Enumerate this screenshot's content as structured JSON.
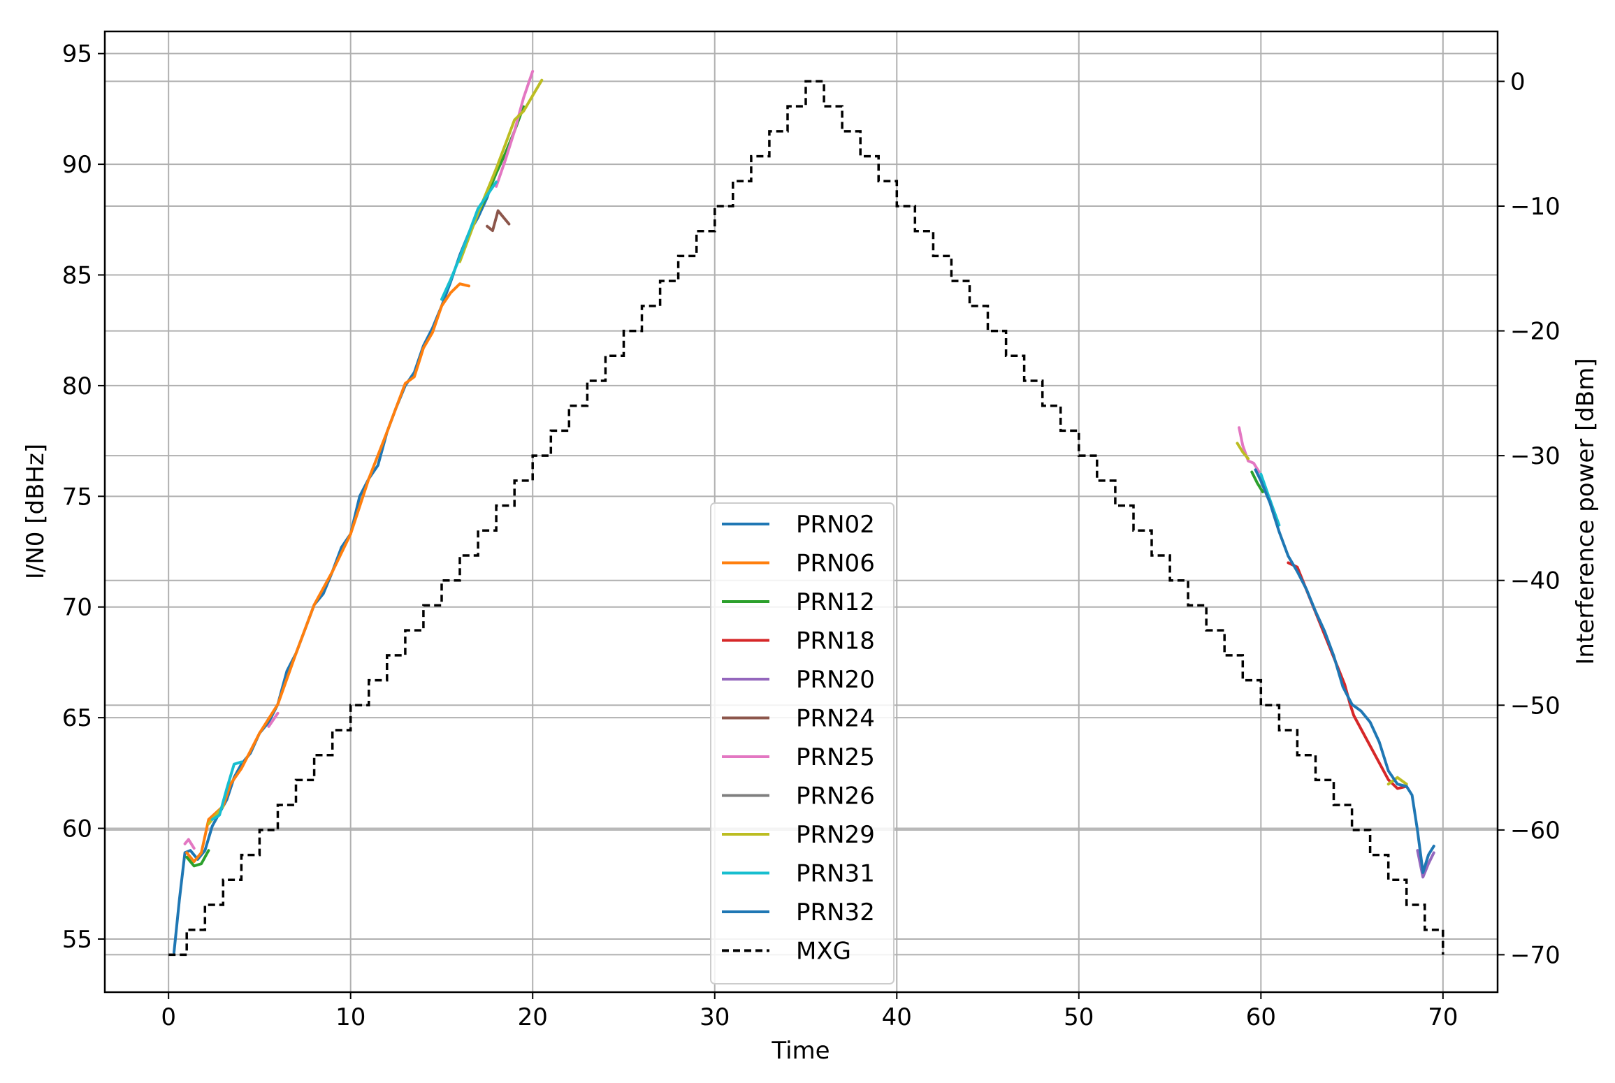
{
  "chart_data": {
    "type": "line",
    "title": "",
    "xlabel": "Time",
    "ylabel": "I/N0 [dBHz]",
    "ylabel_right": "Interference power [dBm]",
    "xlim": [
      -3.5,
      73.0
    ],
    "ylim": [
      52.6,
      96.0
    ],
    "ylim_right": [
      -73.0,
      4.0
    ],
    "xticks": [
      "0",
      "10",
      "20",
      "30",
      "40",
      "50",
      "60",
      "70"
    ],
    "yticks": [
      "55",
      "60",
      "65",
      "70",
      "75",
      "80",
      "85",
      "90",
      "95"
    ],
    "yticks_right": [
      "0",
      "−10",
      "−20",
      "−30",
      "−40",
      "−50",
      "−60",
      "−70"
    ],
    "grid": true,
    "legend_position": "lower-center",
    "series": [
      {
        "name": "PRN02",
        "color": "#1f77b4",
        "axis": "left",
        "x": [
          0.3,
          0.6,
          0.9,
          1.2,
          1.6,
          2.0,
          2.4,
          2.8,
          3.2,
          3.6,
          4.0,
          4.5,
          5.0,
          5.5,
          6.0,
          6.5,
          7.0,
          7.5,
          8.0,
          8.5,
          9.0,
          9.5,
          10.0,
          10.5,
          11.0,
          11.5,
          12.0,
          12.5,
          13.0,
          13.5,
          14.0,
          14.5,
          15.0,
          15.5,
          16.0,
          16.5,
          17.0,
          17.5,
          18.0,
          18.3
        ],
        "y": [
          54.4,
          56.8,
          58.9,
          59.0,
          58.6,
          59.0,
          60.1,
          60.7,
          61.3,
          62.3,
          62.9,
          63.4,
          64.3,
          64.8,
          65.6,
          67.1,
          67.9,
          69.0,
          70.1,
          70.6,
          71.6,
          72.7,
          73.3,
          75.0,
          75.8,
          76.4,
          77.9,
          79.0,
          80.0,
          80.6,
          81.8,
          82.6,
          83.6,
          84.7,
          85.9,
          86.9,
          87.6,
          88.5,
          89.8,
          90.2
        ]
      },
      {
        "name": "PRN06",
        "color": "#ff7f0e",
        "axis": "left",
        "x": [
          1.0,
          1.4,
          1.8,
          2.2,
          2.6,
          3.0,
          3.4,
          4.0,
          5.0,
          6.0,
          7.0,
          8.0,
          9.0,
          10.0,
          11.0,
          12.0,
          12.5,
          13.0,
          13.5,
          14.0,
          14.5,
          15.0,
          15.5,
          16.0,
          16.5
        ],
        "y": [
          58.9,
          58.5,
          58.9,
          60.4,
          60.7,
          61.0,
          62.0,
          62.7,
          64.3,
          65.6,
          67.9,
          70.1,
          71.6,
          73.3,
          75.8,
          77.9,
          79.0,
          80.1,
          80.4,
          81.7,
          82.4,
          83.6,
          84.2,
          84.6,
          84.5
        ]
      },
      {
        "name": "PRN12",
        "color": "#2ca02c",
        "axis": "left",
        "x": [
          1.0,
          1.4,
          1.8,
          2.2,
          17.0,
          17.5,
          18.0,
          18.5,
          19.0,
          19.5,
          59.5,
          59.8,
          60.1
        ],
        "y": [
          58.7,
          58.3,
          58.4,
          59.0,
          87.8,
          88.6,
          89.6,
          90.5,
          91.5,
          92.6,
          76.1,
          75.6,
          75.2
        ]
      },
      {
        "name": "PRN18",
        "color": "#d62728",
        "axis": "left",
        "x": [
          61.5,
          62.0,
          64.6,
          64.9,
          65.1,
          67.0,
          67.5,
          68.0
        ],
        "y": [
          72.0,
          71.8,
          66.5,
          65.6,
          65.1,
          62.2,
          61.8,
          61.9
        ]
      },
      {
        "name": "PRN20",
        "color": "#9467bd",
        "axis": "left",
        "x": [
          68.6,
          68.9,
          69.2,
          69.5
        ],
        "y": [
          59.0,
          57.8,
          58.4,
          58.9
        ]
      },
      {
        "name": "PRN24",
        "color": "#8c564b",
        "axis": "left",
        "x": [
          17.5,
          17.8,
          18.1,
          18.4,
          18.7
        ],
        "y": [
          87.2,
          87.0,
          87.9,
          87.6,
          87.3
        ]
      },
      {
        "name": "PRN25",
        "color": "#e377c2",
        "axis": "left",
        "x": [
          0.9,
          1.1,
          1.4,
          5.5,
          6.0,
          18.0,
          18.5,
          19.0,
          19.5,
          20.0,
          58.8,
          59.0,
          59.3,
          59.6,
          59.9
        ],
        "y": [
          59.3,
          59.5,
          59.1,
          64.6,
          65.2,
          89.0,
          90.2,
          91.5,
          93.0,
          94.2,
          78.1,
          77.3,
          76.6,
          76.5,
          76.1
        ]
      },
      {
        "name": "PRN26",
        "color": "#7f7f7f",
        "axis": "left",
        "x": [],
        "y": []
      },
      {
        "name": "PRN29",
        "color": "#bcbd22",
        "axis": "left",
        "x": [
          2.2,
          2.6,
          3.0,
          16.0,
          17.0,
          18.0,
          18.5,
          19.0,
          19.5,
          20.0,
          20.5,
          58.7,
          59.0,
          59.3,
          67.0,
          67.5,
          68.0
        ],
        "y": [
          60.2,
          60.6,
          61.0,
          85.6,
          87.8,
          89.8,
          90.9,
          92.0,
          92.4,
          93.1,
          93.8,
          77.4,
          77.0,
          76.7,
          62.0,
          62.3,
          62.0
        ]
      },
      {
        "name": "PRN31",
        "color": "#17becf",
        "axis": "left",
        "x": [
          2.4,
          2.8,
          3.2,
          3.6,
          4.0,
          15.0,
          15.5,
          16.0,
          16.5,
          17.0,
          17.5,
          18.0,
          60.0,
          60.3,
          60.6,
          61.0
        ],
        "y": [
          60.4,
          60.6,
          61.8,
          62.9,
          63.0,
          83.9,
          84.8,
          85.8,
          86.9,
          88.0,
          88.6,
          89.2,
          76.0,
          75.3,
          74.6,
          73.7
        ]
      },
      {
        "name": "PRN32",
        "color": "#1f77b4",
        "axis": "left",
        "x": [
          59.7,
          60.0,
          60.5,
          61.0,
          61.5,
          62.0,
          62.5,
          63.0,
          63.5,
          64.0,
          64.5,
          65.0,
          65.5,
          66.0,
          66.5,
          67.0,
          67.5,
          68.0,
          68.3,
          68.6,
          68.9,
          69.2,
          69.5
        ],
        "y": [
          76.2,
          75.7,
          74.7,
          73.4,
          72.3,
          71.6,
          70.8,
          69.8,
          68.9,
          67.8,
          66.4,
          65.6,
          65.3,
          64.8,
          63.9,
          62.6,
          62.0,
          61.9,
          61.5,
          59.9,
          58.0,
          58.8,
          59.2
        ]
      },
      {
        "name": "MXG",
        "color": "#000000",
        "axis": "right",
        "dashed": true,
        "x": [
          0.0,
          35.0,
          70.0
        ],
        "y": [
          -70.0,
          0.0,
          -70.0
        ]
      }
    ]
  }
}
